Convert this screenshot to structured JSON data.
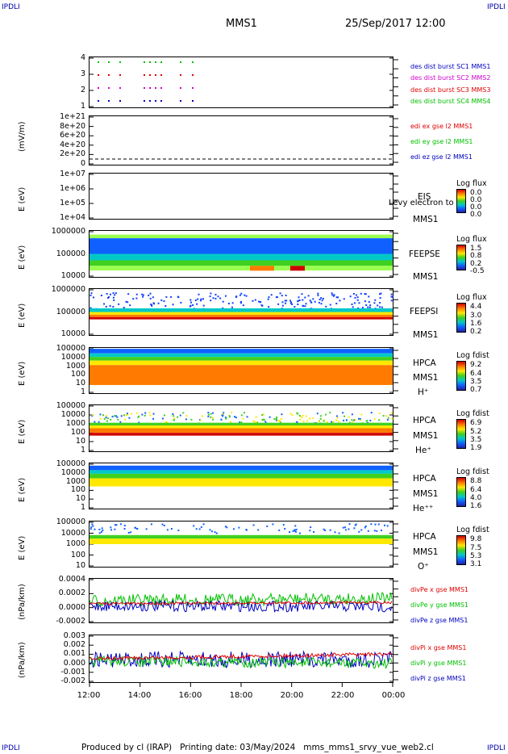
{
  "corners": {
    "tl": "IPDLI",
    "tr": "IPDLI",
    "bl": "IPDLI",
    "br": "IPDLI"
  },
  "header": {
    "spacecraft": "MMS1",
    "datetime": "25/Sep/2017 12:00"
  },
  "footer": {
    "text": "Produced by cl (IRAP)   Printing date: 03/May/2024   mms_mms1_srvy_vue_web2.cl"
  },
  "colors": {
    "red": "#e00000",
    "green": "#00c000",
    "blue": "#0000c0",
    "magenta": "#d000d0",
    "orange": "#ff7a00"
  },
  "chart_data": [
    {
      "type": "scatter",
      "ylabel": "",
      "yticks": [
        "4",
        "3",
        "2",
        "1"
      ],
      "x": [
        "12:00",
        "14:00",
        "16:00",
        "18:00",
        "20:00",
        "22:00",
        "00:00"
      ],
      "series": [
        {
          "name": "des dist burst SC1 MMS1",
          "color": "#0000c0"
        },
        {
          "name": "des dist burst SC2 MMS2",
          "color": "#d000d0"
        },
        {
          "name": "des dist burst SC3 MMS3",
          "color": "#e00000"
        },
        {
          "name": "des dist burst SC4 MMS4",
          "color": "#00c000"
        }
      ]
    },
    {
      "type": "line",
      "ylabel": "(mV/m)",
      "yticks": [
        "1e+21",
        "8e+20",
        "6e+20",
        "4e+20",
        "2e+20",
        "0"
      ],
      "series": [
        {
          "name": "edi ex gse l2 MMS1",
          "color": "#e00000"
        },
        {
          "name": "edi ey gse l2 MMS1",
          "color": "#00c000"
        },
        {
          "name": "edi ez gse l2 MMS1",
          "color": "#0000c0"
        }
      ]
    },
    {
      "type": "heatmap",
      "ylabel": "E (eV)",
      "yticks": [
        "1e+07",
        "1e+06",
        "1e+05",
        "1e+04"
      ],
      "side": [
        "EIS",
        "MMS1"
      ],
      "overlay": "Levy electron to",
      "colorbar": {
        "title": "Log flux",
        "values": [
          "0.0",
          "0.0",
          "0.0",
          "0.0"
        ]
      }
    },
    {
      "type": "heatmap",
      "ylabel": "E (eV)",
      "yticks": [
        "1000000",
        "100000",
        "10000"
      ],
      "side": [
        "FEEPSE",
        "MMS1"
      ],
      "colorbar": {
        "title": "Log flux",
        "values": [
          "1.5",
          "0.8",
          "0.2",
          "-0.5"
        ]
      }
    },
    {
      "type": "heatmap",
      "ylabel": "E (eV)",
      "yticks": [
        "1000000",
        "100000",
        "10000"
      ],
      "side": [
        "FEEPSI",
        "MMS1"
      ],
      "colorbar": {
        "title": "Log flux",
        "values": [
          "4.4",
          "3.0",
          "1.6",
          "0.2"
        ]
      }
    },
    {
      "type": "heatmap",
      "ylabel": "E (eV)",
      "yticks": [
        "100000",
        "10000",
        "1000",
        "100",
        "10",
        "1"
      ],
      "side": [
        "HPCA",
        "MMS1",
        "H⁺"
      ],
      "colorbar": {
        "title": "Log fdist",
        "values": [
          "9.2",
          "6.4",
          "3.5",
          "0.7"
        ]
      }
    },
    {
      "type": "heatmap",
      "ylabel": "E (eV)",
      "yticks": [
        "100000",
        "10000",
        "1000",
        "100",
        "10",
        "1"
      ],
      "side": [
        "HPCA",
        "MMS1",
        "He⁺"
      ],
      "colorbar": {
        "title": "Log fdist",
        "values": [
          "6.9",
          "5.2",
          "3.5",
          "1.9"
        ]
      }
    },
    {
      "type": "heatmap",
      "ylabel": "E (eV)",
      "yticks": [
        "100000",
        "10000",
        "1000",
        "100",
        "10",
        "1"
      ],
      "side": [
        "HPCA",
        "MMS1",
        "He⁺⁺"
      ],
      "colorbar": {
        "title": "Log fdist",
        "values": [
          "8.8",
          "6.4",
          "4.0",
          "1.6"
        ]
      }
    },
    {
      "type": "heatmap",
      "ylabel": "E (eV)",
      "yticks": [
        "100000",
        "10000",
        "1000",
        "100",
        "10"
      ],
      "side": [
        "HPCA",
        "MMS1",
        "O⁺"
      ],
      "colorbar": {
        "title": "Log fdist",
        "values": [
          "9.8",
          "7.5",
          "5.3",
          "3.1"
        ]
      }
    },
    {
      "type": "line",
      "ylabel": "(nPa/km)",
      "yticks": [
        "0.0004",
        "0.0002",
        "0.0000",
        "-0.0002"
      ],
      "series": [
        {
          "name": "divPe x gse MMS1",
          "color": "#e00000"
        },
        {
          "name": "divPe y gse MMS1",
          "color": "#00c000"
        },
        {
          "name": "divPe z gse MMS1",
          "color": "#0000c0"
        }
      ]
    },
    {
      "type": "line",
      "ylabel": "(nPa/km)",
      "yticks": [
        "0.003",
        "0.002",
        "0.001",
        "0.000",
        "-0.001",
        "-0.002"
      ],
      "series": [
        {
          "name": "divPi x gse MMS1",
          "color": "#e00000"
        },
        {
          "name": "divPi y gse MMS1",
          "color": "#00c000"
        },
        {
          "name": "divPi z gse MMS1",
          "color": "#0000c0"
        }
      ]
    }
  ],
  "xaxis": {
    "ticks": [
      "12:00",
      "14:00",
      "16:00",
      "18:00",
      "20:00",
      "22:00",
      "00:00"
    ]
  }
}
